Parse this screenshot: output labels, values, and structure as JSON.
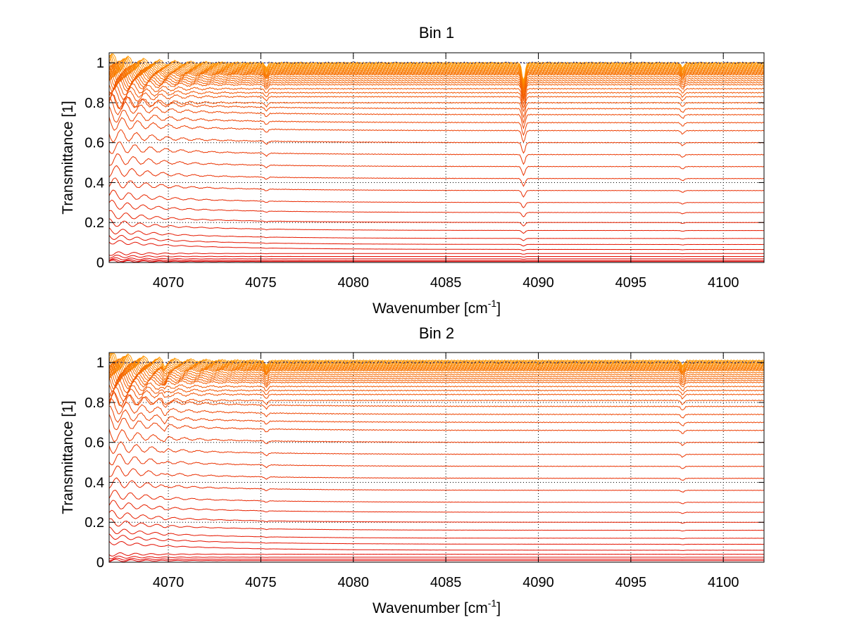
{
  "chart_data": [
    {
      "type": "line",
      "title": "Bin 1",
      "xlabel": "Wavenumber [cm",
      "xlabel_sup": "-1",
      "xlabel_tail": "]",
      "ylabel": "Transmittance [1]",
      "xlim": [
        4066.8,
        4102.2
      ],
      "ylim": [
        0,
        1.05
      ],
      "xticks": [
        4070,
        4075,
        4080,
        4085,
        4090,
        4095,
        4100
      ],
      "yticks": [
        0,
        0.2,
        0.4,
        0.6,
        0.8,
        1
      ],
      "ytick_labels": [
        "0",
        "0.2",
        "0.4",
        "0.6",
        "0.8",
        "1"
      ],
      "grid": true,
      "legend": "none",
      "absorption_lines_cm1": [
        4075.3,
        4089.2,
        4097.8
      ],
      "series_baselines": [
        1.0,
        0.995,
        0.99,
        0.985,
        0.98,
        0.975,
        0.97,
        0.965,
        0.96,
        0.955,
        0.95,
        0.945,
        0.94,
        0.93,
        0.92,
        0.91,
        0.9,
        0.89,
        0.87,
        0.85,
        0.83,
        0.8,
        0.77,
        0.74,
        0.7,
        0.66,
        0.6,
        0.54,
        0.48,
        0.42,
        0.36,
        0.3,
        0.25,
        0.2,
        0.16,
        0.12,
        0.09,
        0.065,
        0.045,
        0.03,
        0.018,
        0.01,
        0.005
      ],
      "colors": {
        "low": "#e00000",
        "high": "#ff9900",
        "dark_trace": "#1a1a66"
      }
    },
    {
      "type": "line",
      "title": "Bin 2",
      "xlabel": "Wavenumber [cm",
      "xlabel_sup": "-1",
      "xlabel_tail": "]",
      "ylabel": "Transmittance [1]",
      "xlim": [
        4066.8,
        4102.2
      ],
      "ylim": [
        0,
        1.05
      ],
      "xticks": [
        4070,
        4075,
        4080,
        4085,
        4090,
        4095,
        4100
      ],
      "yticks": [
        0,
        0.2,
        0.4,
        0.6,
        0.8,
        1
      ],
      "ytick_labels": [
        "0",
        "0.2",
        "0.4",
        "0.6",
        "0.8",
        "1"
      ],
      "grid": true,
      "legend": "none",
      "absorption_lines_cm1": [
        4069.8,
        4075.3,
        4097.8
      ],
      "series_baselines": [
        1.01,
        1.005,
        1.0,
        0.995,
        0.99,
        0.985,
        0.98,
        0.975,
        0.97,
        0.965,
        0.96,
        0.95,
        0.94,
        0.93,
        0.92,
        0.91,
        0.9,
        0.88,
        0.86,
        0.84,
        0.81,
        0.78,
        0.74,
        0.7,
        0.66,
        0.6,
        0.54,
        0.48,
        0.42,
        0.36,
        0.3,
        0.25,
        0.2,
        0.16,
        0.12,
        0.09,
        0.06,
        0.04,
        0.025,
        0.015,
        0.008
      ],
      "colors": {
        "low": "#e00000",
        "high": "#ff9900",
        "dark_trace": "#1a1a66"
      }
    }
  ]
}
